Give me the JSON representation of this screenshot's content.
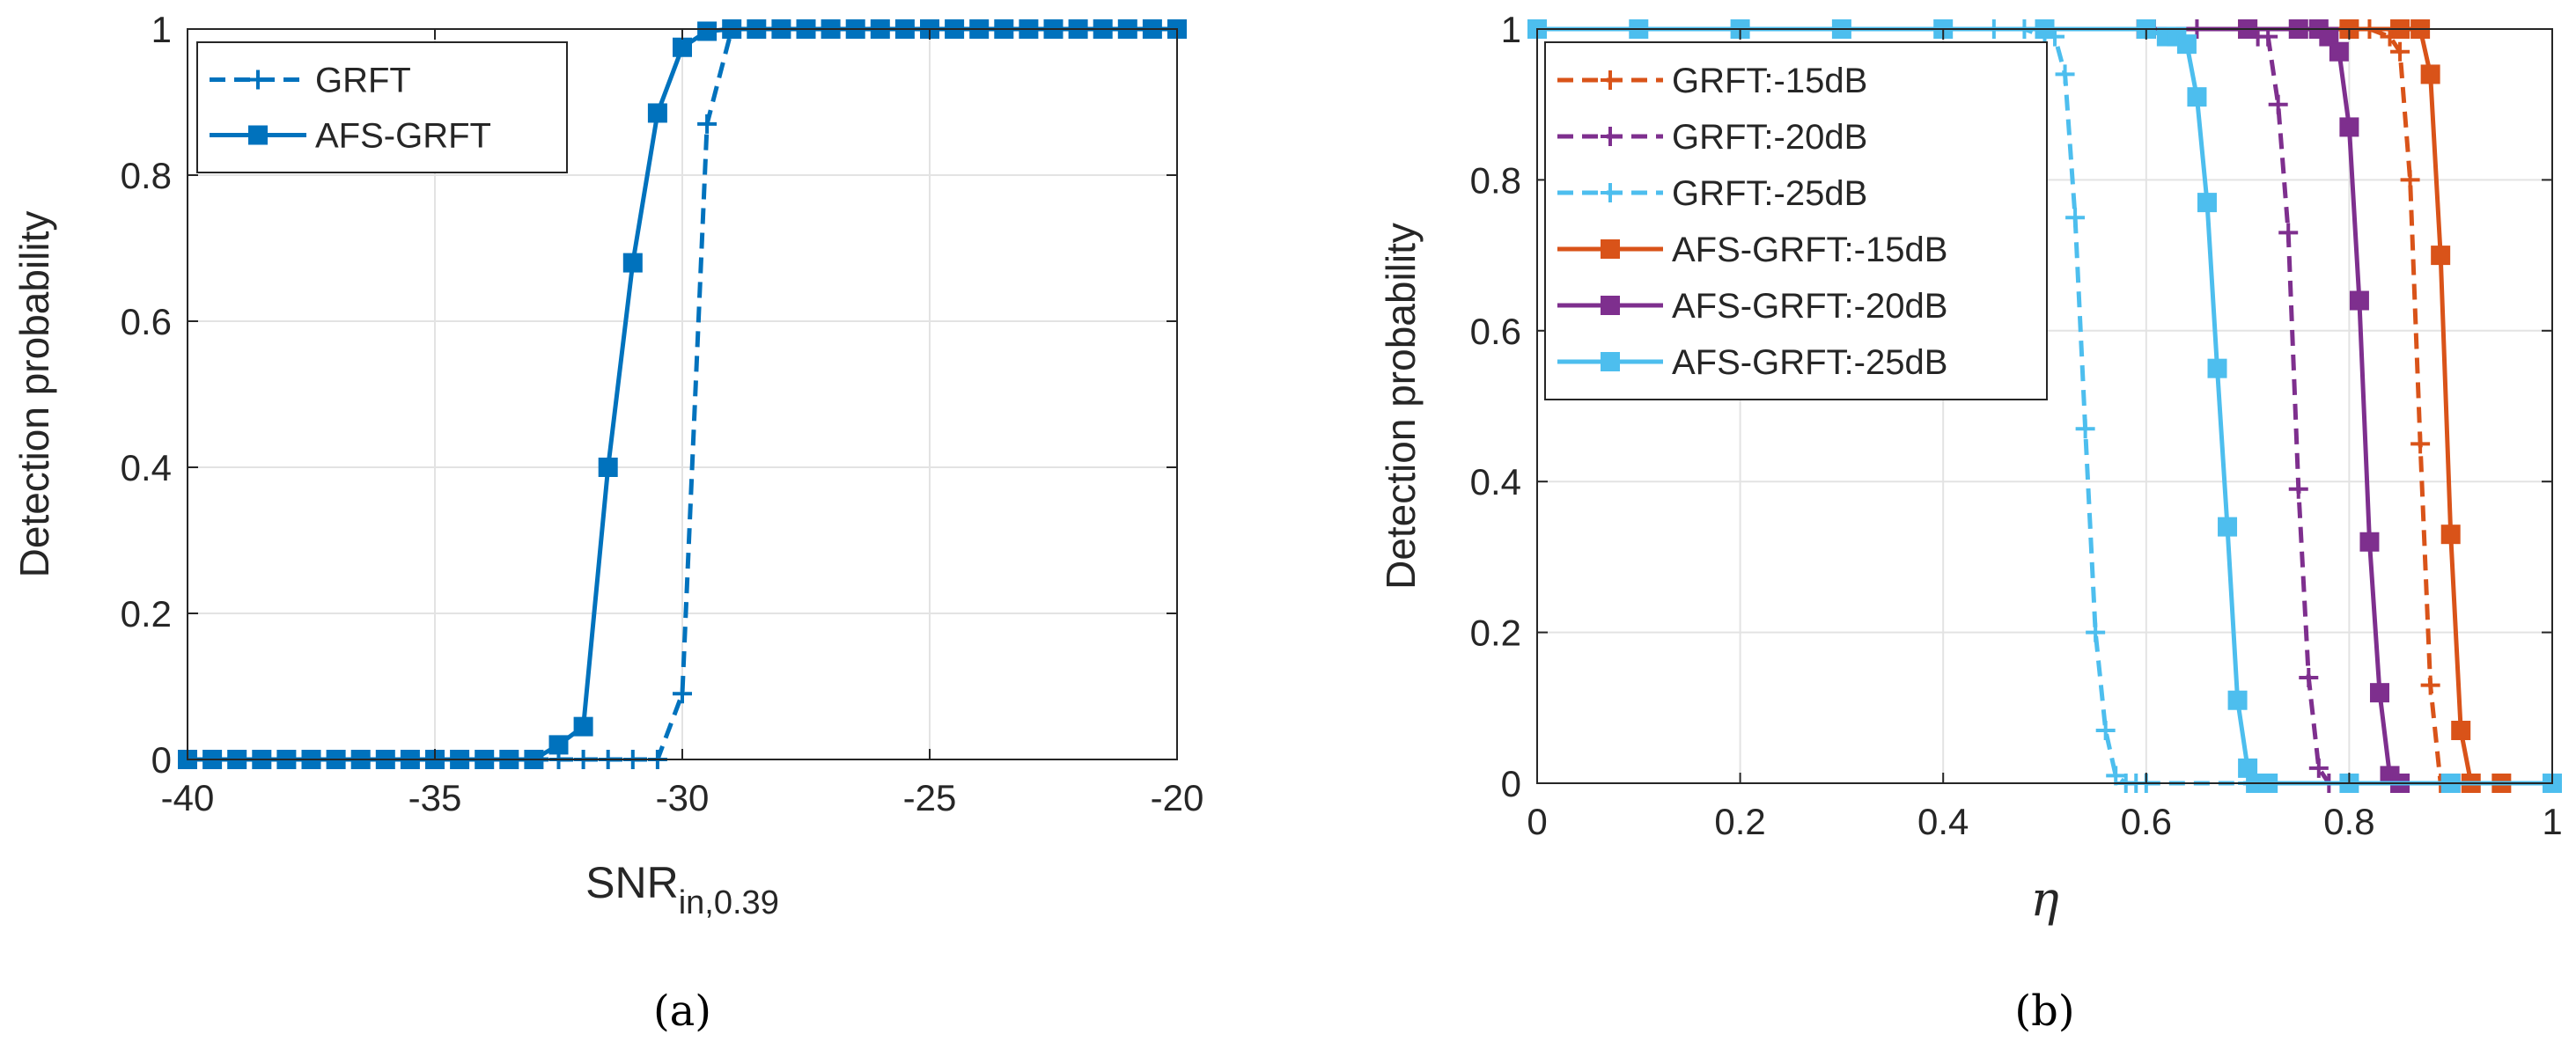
{
  "chart_data": [
    {
      "type": "line",
      "caption": "(a)",
      "title": "",
      "xlabel": "SNR",
      "xlabel_sub": "in,0.39",
      "ylabel": "Detection probability",
      "xlim": [
        -40,
        -20
      ],
      "ylim": [
        0,
        1
      ],
      "xticks": [
        -40,
        -35,
        -30,
        -25,
        -20
      ],
      "xtick_labels": [
        "-40",
        "-35",
        "-30",
        "-25",
        "-20"
      ],
      "yticks": [
        0,
        0.2,
        0.4,
        0.6,
        0.8,
        1
      ],
      "ytick_labels": [
        "0",
        "0.2",
        "0.4",
        "0.6",
        "0.8",
        "1"
      ],
      "grid": true,
      "legend_position": "top-left",
      "series": [
        {
          "name": "GRFT",
          "color": "#0072BD",
          "dash": "dashed",
          "marker": "plus",
          "x": [
            -40,
            -39.5,
            -39,
            -38.5,
            -38,
            -37.5,
            -37,
            -36.5,
            -36,
            -35.5,
            -35,
            -34.5,
            -34,
            -33.5,
            -33,
            -32.5,
            -32,
            -31.5,
            -31,
            -30.5,
            -30,
            -29.5,
            -29,
            -28.5,
            -28,
            -27.5,
            -27,
            -26.5,
            -26,
            -25.5,
            -25,
            -24.5,
            -24,
            -23.5,
            -23,
            -22.5,
            -22,
            -21.5,
            -21,
            -20.5,
            -20
          ],
          "values": [
            0,
            0,
            0,
            0,
            0,
            0,
            0,
            0,
            0,
            0,
            0,
            0,
            0,
            0,
            0,
            0,
            0,
            0,
            0,
            0,
            0.09,
            0.87,
            1,
            1,
            1,
            1,
            1,
            1,
            1,
            1,
            1,
            1,
            1,
            1,
            1,
            1,
            1,
            1,
            1,
            1,
            1
          ]
        },
        {
          "name": "AFS-GRFT",
          "color": "#0072BD",
          "dash": "solid",
          "marker": "square",
          "x": [
            -40,
            -39.5,
            -39,
            -38.5,
            -38,
            -37.5,
            -37,
            -36.5,
            -36,
            -35.5,
            -35,
            -34.5,
            -34,
            -33.5,
            -33,
            -32.5,
            -32,
            -31.5,
            -31,
            -30.5,
            -30,
            -29.5,
            -29,
            -28.5,
            -28,
            -27.5,
            -27,
            -26.5,
            -26,
            -25.5,
            -25,
            -24.5,
            -24,
            -23.5,
            -23,
            -22.5,
            -22,
            -21.5,
            -21,
            -20.5,
            -20
          ],
          "values": [
            0,
            0,
            0,
            0,
            0,
            0,
            0,
            0,
            0,
            0,
            0,
            0,
            0,
            0,
            0,
            0.02,
            0.045,
            0.4,
            0.68,
            0.885,
            0.975,
            0.997,
            1,
            1,
            1,
            1,
            1,
            1,
            1,
            1,
            1,
            1,
            1,
            1,
            1,
            1,
            1,
            1,
            1,
            1,
            1
          ]
        }
      ]
    },
    {
      "type": "line",
      "caption": "(b)",
      "title": "",
      "xlabel": "η",
      "ylabel": "Detection probability",
      "xlim": [
        0,
        1
      ],
      "ylim": [
        0,
        1
      ],
      "xticks": [
        0,
        0.2,
        0.4,
        0.6,
        0.8,
        1
      ],
      "xtick_labels": [
        "0",
        "0.2",
        "0.4",
        "0.6",
        "0.8",
        "1"
      ],
      "yticks": [
        0,
        0.2,
        0.4,
        0.6,
        0.8,
        1
      ],
      "ytick_labels": [
        "0",
        "0.2",
        "0.4",
        "0.6",
        "0.8",
        "1"
      ],
      "grid": true,
      "legend_position": "top-left",
      "series": [
        {
          "name": "GRFT:-15dB",
          "color": "#D95319",
          "dash": "dashed",
          "marker": "plus",
          "x": [
            0.7,
            0.75,
            0.8,
            0.82,
            0.84,
            0.85,
            0.86,
            0.87,
            0.88,
            0.89,
            0.9,
            0.95,
            1.0
          ],
          "values": [
            1,
            1,
            1,
            1,
            0.99,
            0.97,
            0.8,
            0.45,
            0.13,
            0,
            0,
            0,
            0
          ]
        },
        {
          "name": "GRFT:-20dB",
          "color": "#7E2F8E",
          "dash": "dashed",
          "marker": "plus",
          "x": [
            0.6,
            0.65,
            0.7,
            0.71,
            0.72,
            0.73,
            0.74,
            0.75,
            0.76,
            0.77,
            0.78,
            0.8,
            0.9,
            1.0
          ],
          "values": [
            1,
            1,
            1,
            0.99,
            0.99,
            0.9,
            0.73,
            0.39,
            0.14,
            0.02,
            0,
            0,
            0,
            0
          ]
        },
        {
          "name": "GRFT:-25dB",
          "color": "#4DBEEE",
          "dash": "dashed",
          "marker": "plus",
          "x": [
            0.4,
            0.45,
            0.48,
            0.5,
            0.51,
            0.52,
            0.53,
            0.54,
            0.55,
            0.56,
            0.57,
            0.58,
            0.59,
            0.6,
            0.7,
            0.8,
            0.9,
            1.0
          ],
          "values": [
            1,
            1,
            1,
            0.99,
            0.99,
            0.94,
            0.75,
            0.47,
            0.2,
            0.07,
            0.01,
            0,
            0,
            0,
            0,
            0,
            0,
            0
          ]
        },
        {
          "name": "AFS-GRFT:-15dB",
          "color": "#D95319",
          "dash": "solid",
          "marker": "square",
          "x": [
            0.6,
            0.7,
            0.8,
            0.85,
            0.87,
            0.88,
            0.89,
            0.9,
            0.91,
            0.92,
            0.95,
            1.0
          ],
          "values": [
            1,
            1,
            1,
            1,
            1,
            0.94,
            0.7,
            0.33,
            0.07,
            0,
            0,
            0
          ]
        },
        {
          "name": "AFS-GRFT:-20dB",
          "color": "#7E2F8E",
          "dash": "solid",
          "marker": "square",
          "x": [
            0.5,
            0.6,
            0.7,
            0.75,
            0.77,
            0.78,
            0.79,
            0.8,
            0.81,
            0.82,
            0.83,
            0.84,
            0.85,
            0.9,
            1.0
          ],
          "values": [
            1,
            1,
            1,
            1,
            1,
            0.99,
            0.97,
            0.87,
            0.64,
            0.32,
            0.12,
            0.01,
            0,
            0,
            0
          ]
        },
        {
          "name": "AFS-GRFT:-25dB",
          "color": "#4DBEEE",
          "dash": "solid",
          "marker": "square",
          "x": [
            0,
            0.1,
            0.2,
            0.3,
            0.4,
            0.5,
            0.6,
            0.62,
            0.63,
            0.64,
            0.65,
            0.66,
            0.67,
            0.68,
            0.69,
            0.7,
            0.71,
            0.72,
            0.8,
            0.9,
            1.0
          ],
          "values": [
            1,
            1,
            1,
            1,
            1,
            1,
            1,
            0.99,
            0.99,
            0.98,
            0.91,
            0.77,
            0.55,
            0.34,
            0.11,
            0.02,
            0,
            0,
            0,
            0,
            0
          ]
        }
      ]
    }
  ]
}
